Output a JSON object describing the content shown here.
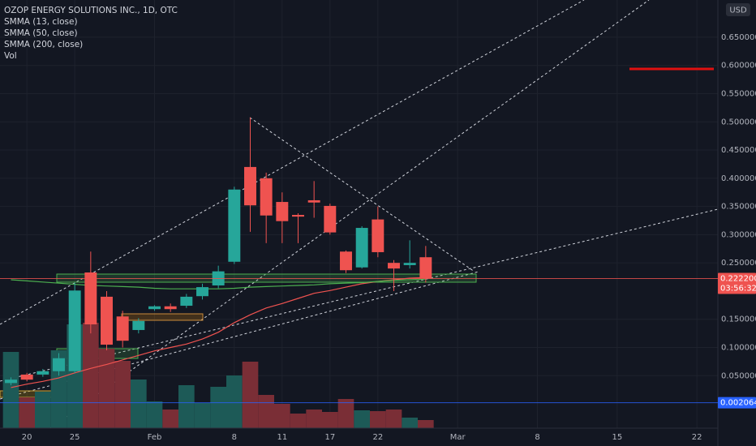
{
  "chart_data": {
    "type": "candlestick",
    "title": "OZOP ENERGY SOLUTIONS INC., 1D, OTC",
    "currency": "USD",
    "categories": [
      null,
      "20",
      null,
      null,
      "25",
      null,
      null,
      null,
      null,
      "Feb",
      null,
      null,
      null,
      null,
      "8",
      null,
      null,
      "11",
      null,
      null,
      "17",
      null,
      null,
      "22",
      null,
      null,
      null,
      null,
      "Mar",
      null,
      null,
      null,
      null,
      "8",
      null,
      null,
      null,
      null,
      "15",
      null,
      null,
      null,
      null,
      "22",
      null
    ],
    "open": [
      0.037,
      0.052,
      0.052,
      0.058,
      0.058,
      0.233,
      0.19,
      0.155,
      0.131,
      0.168,
      0.173,
      0.174,
      0.191,
      0.21,
      0.252,
      0.42,
      0.4,
      0.358,
      0.335,
      0.361,
      0.351,
      0.27,
      0.242,
      0.327,
      0.25,
      0.246,
      0.26,
      null,
      null,
      null,
      null,
      null,
      null,
      null,
      null,
      null,
      null,
      null,
      null,
      null,
      null,
      null,
      null,
      null,
      null
    ],
    "high": [
      0.047,
      0.055,
      0.062,
      0.09,
      0.215,
      0.27,
      0.2,
      0.165,
      0.152,
      0.175,
      0.178,
      0.195,
      0.213,
      0.245,
      0.385,
      0.508,
      0.41,
      0.375,
      0.338,
      0.395,
      0.355,
      0.272,
      0.315,
      0.35,
      0.255,
      0.29,
      0.28,
      null,
      null,
      null,
      null,
      null,
      null,
      null,
      null,
      null,
      null,
      null,
      null,
      null,
      null,
      null,
      null,
      null,
      null
    ],
    "low": [
      0.033,
      0.04,
      0.048,
      0.05,
      0.055,
      0.125,
      0.095,
      0.1,
      0.125,
      0.165,
      0.163,
      0.17,
      0.185,
      0.205,
      0.248,
      0.305,
      0.285,
      0.285,
      0.285,
      0.33,
      0.3,
      0.232,
      0.24,
      0.26,
      0.2,
      0.24,
      0.215,
      null,
      null,
      null,
      null,
      null,
      null,
      null,
      null,
      null,
      null,
      null,
      null,
      null,
      null,
      null,
      null,
      null,
      null
    ],
    "close": [
      0.043,
      0.043,
      0.058,
      0.081,
      0.201,
      0.141,
      0.105,
      0.112,
      0.147,
      0.173,
      0.168,
      0.19,
      0.207,
      0.235,
      0.38,
      0.352,
      0.334,
      0.324,
      0.332,
      0.357,
      0.304,
      0.237,
      0.312,
      0.269,
      0.24,
      0.25,
      0.2222,
      null,
      null,
      null,
      null,
      null,
      null,
      null,
      null,
      null,
      null,
      null,
      null,
      null,
      null,
      null,
      null,
      null,
      null
    ],
    "up_color": "#26a69a",
    "down_color": "#ef5350",
    "volume": {
      "name": "Vol",
      "up_color": "#1d5a57",
      "down_color": "#7a2e36",
      "ylim": [
        0,
        528
      ],
      "values": [
        94,
        38,
        45,
        96,
        128,
        130,
        98,
        83,
        60,
        33,
        23,
        53,
        31,
        51,
        65,
        82,
        41,
        30,
        18,
        23,
        20,
        36,
        22,
        21,
        23,
        13,
        10,
        null,
        null,
        null,
        null,
        null,
        null,
        null,
        null,
        null,
        null,
        null,
        null,
        null,
        null,
        null,
        null,
        null,
        null
      ]
    },
    "series": [
      {
        "name": "SMMA (13, close)",
        "color": "#f05350",
        "values": [
          0.029,
          0.035,
          0.04,
          0.046,
          0.055,
          0.063,
          0.07,
          0.078,
          0.086,
          0.094,
          0.1,
          0.106,
          0.115,
          0.127,
          0.144,
          0.158,
          0.17,
          0.178,
          0.187,
          0.196,
          0.201,
          0.207,
          0.213,
          0.217,
          0.22,
          0.223,
          0.224,
          null,
          null,
          null,
          null,
          null,
          null,
          null,
          null,
          null,
          null,
          null,
          null,
          null,
          null,
          null,
          null,
          null,
          null
        ]
      },
      {
        "name": "SMMA (50, close)",
        "color": "#4caf50",
        "values": [
          0.22,
          0.218,
          0.216,
          0.214,
          0.212,
          0.21,
          0.209,
          0.208,
          0.207,
          0.205,
          0.204,
          0.204,
          0.204,
          0.204,
          0.205,
          0.207,
          0.208,
          0.209,
          0.21,
          0.211,
          0.213,
          0.214,
          0.215,
          0.217,
          0.219,
          0.22,
          0.221,
          null,
          null,
          null,
          null,
          null,
          null,
          null,
          null,
          null,
          null,
          null,
          null,
          null,
          null,
          null,
          null,
          null,
          null
        ]
      },
      {
        "name": "SMMA (200, close)"
      }
    ],
    "ylim": [
      -0.043,
      0.716
    ],
    "yticks": [
      {
        "value": 0.05,
        "label": "0.050000"
      },
      {
        "value": 0.1,
        "label": "0.100000"
      },
      {
        "value": 0.15,
        "label": "0.150000"
      },
      {
        "value": 0.25,
        "label": "0.250000"
      },
      {
        "value": 0.3,
        "label": "0.300000"
      },
      {
        "value": 0.35,
        "label": "0.350000"
      },
      {
        "value": 0.4,
        "label": "0.400000"
      },
      {
        "value": 0.45,
        "label": "0.450000"
      },
      {
        "value": 0.5,
        "label": "0.500000"
      },
      {
        "value": 0.55,
        "label": "0.550000"
      },
      {
        "value": 0.6,
        "label": "0.600000"
      },
      {
        "value": 0.65,
        "label": "0.650000"
      }
    ],
    "grid": true,
    "price_lines": [
      {
        "value": 0.2222,
        "label": "0.222200",
        "countdown": "03:56:32",
        "color": "#ef5350"
      },
      {
        "value": 0.002064,
        "label": "0.002064",
        "color": "#2962ff"
      }
    ]
  }
}
